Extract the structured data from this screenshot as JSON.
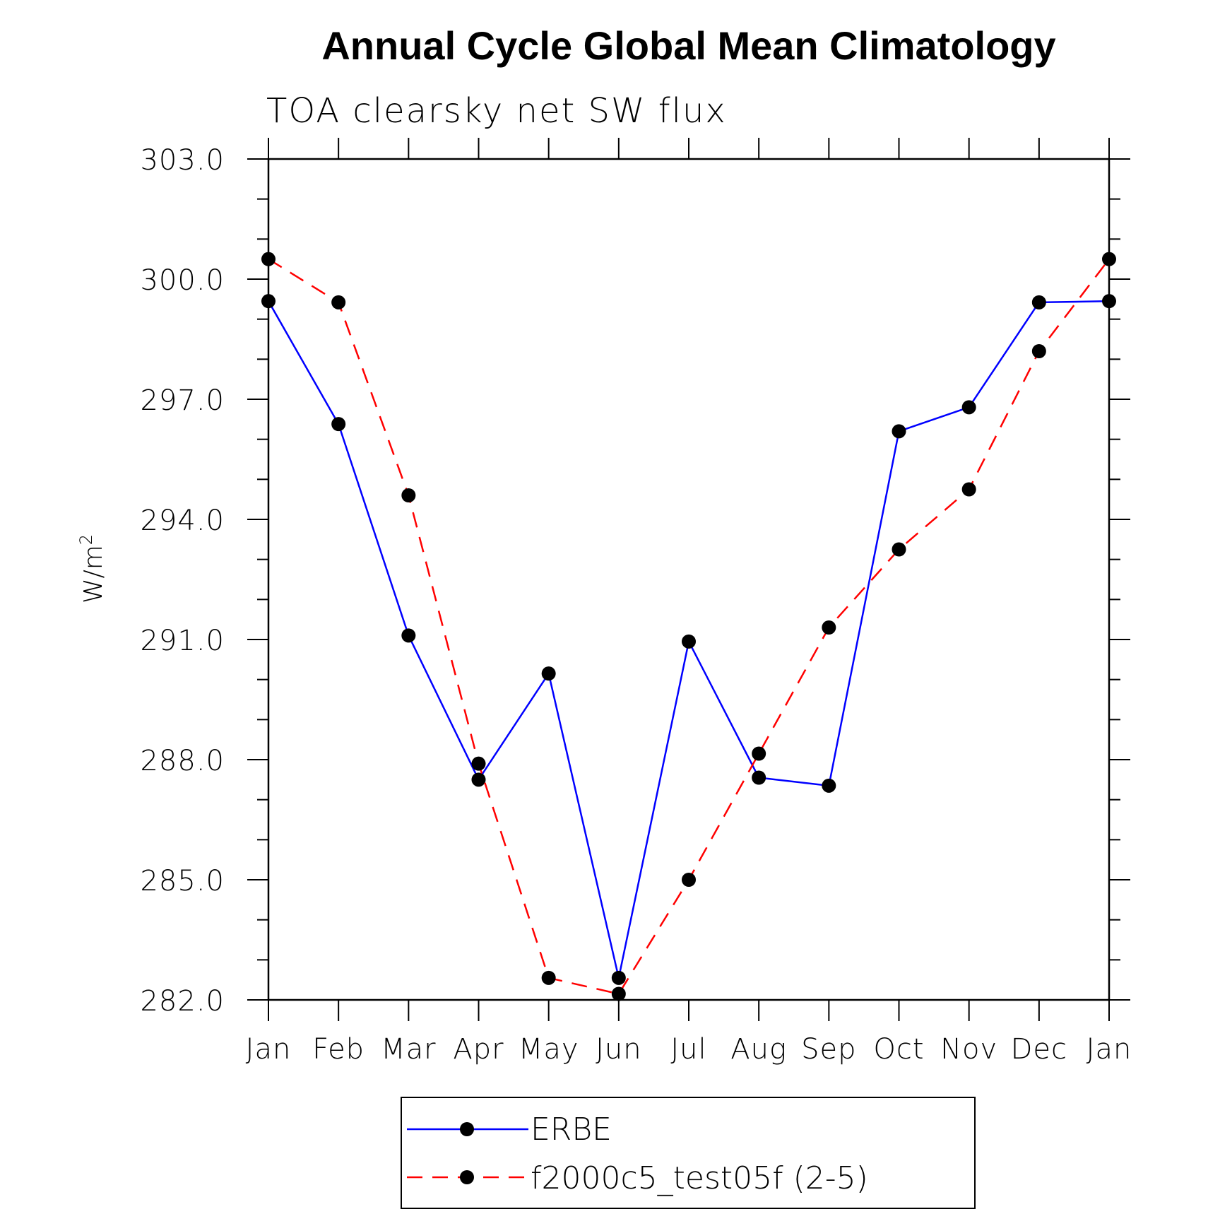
{
  "chart_data": {
    "type": "line",
    "title": "Annual Cycle Global Mean Climatology",
    "subtitle": "TOA clearsky net SW flux",
    "ylabel": "W/m",
    "ylabel_superscript": "2",
    "xlabel": "",
    "categories": [
      "Jan",
      "Feb",
      "Mar",
      "Apr",
      "May",
      "Jun",
      "Jul",
      "Aug",
      "Sep",
      "Oct",
      "Nov",
      "Dec",
      "Jan"
    ],
    "ylim": [
      282.0,
      303.0
    ],
    "yticks": [
      "282.0",
      "285.0",
      "288.0",
      "291.0",
      "294.0",
      "297.0",
      "300.0",
      "303.0"
    ],
    "ytick_values": [
      282,
      285,
      288,
      291,
      294,
      297,
      300,
      303
    ],
    "grid": false,
    "legend_position": "bottom-center",
    "series": [
      {
        "name": "ERBE",
        "color": "#0000ff",
        "line_style": "solid",
        "marker": "filled-circle",
        "values": [
          299.45,
          296.38,
          291.1,
          287.5,
          290.15,
          282.55,
          290.95,
          287.55,
          287.35,
          296.2,
          296.8,
          299.42,
          299.45
        ]
      },
      {
        "name": "f2000c5_test05f (2-5)",
        "color": "#ff0000",
        "line_style": "dashed",
        "marker": "filled-circle",
        "values": [
          300.5,
          299.42,
          294.6,
          287.9,
          282.55,
          282.15,
          285.0,
          288.15,
          291.3,
          293.25,
          294.75,
          298.2,
          300.5
        ]
      }
    ]
  }
}
